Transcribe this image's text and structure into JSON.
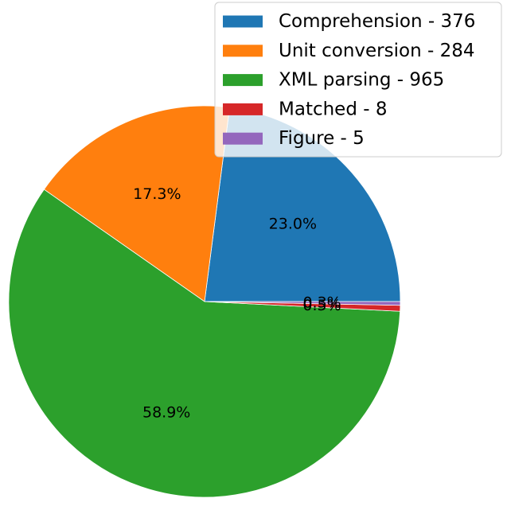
{
  "chart_data": {
    "type": "pie",
    "title": "",
    "start_angle_deg": 0,
    "direction": "counterclockwise",
    "legend_position": "top-right",
    "slices": [
      {
        "label": "Comprehension - 376",
        "value": 376,
        "percent_label": "23.0%",
        "color": "#1f77b4"
      },
      {
        "label": "Unit conversion - 284",
        "value": 284,
        "percent_label": "17.3%",
        "color": "#ff7f0e"
      },
      {
        "label": "XML parsing - 965",
        "value": 965,
        "percent_label": "58.9%",
        "color": "#2ca02c"
      },
      {
        "label": "Matched - 8",
        "value": 8,
        "percent_label": "0.5%",
        "color": "#d62728"
      },
      {
        "label": "Figure - 5",
        "value": 5,
        "percent_label": "0.3%",
        "color": "#9467bd"
      }
    ]
  }
}
